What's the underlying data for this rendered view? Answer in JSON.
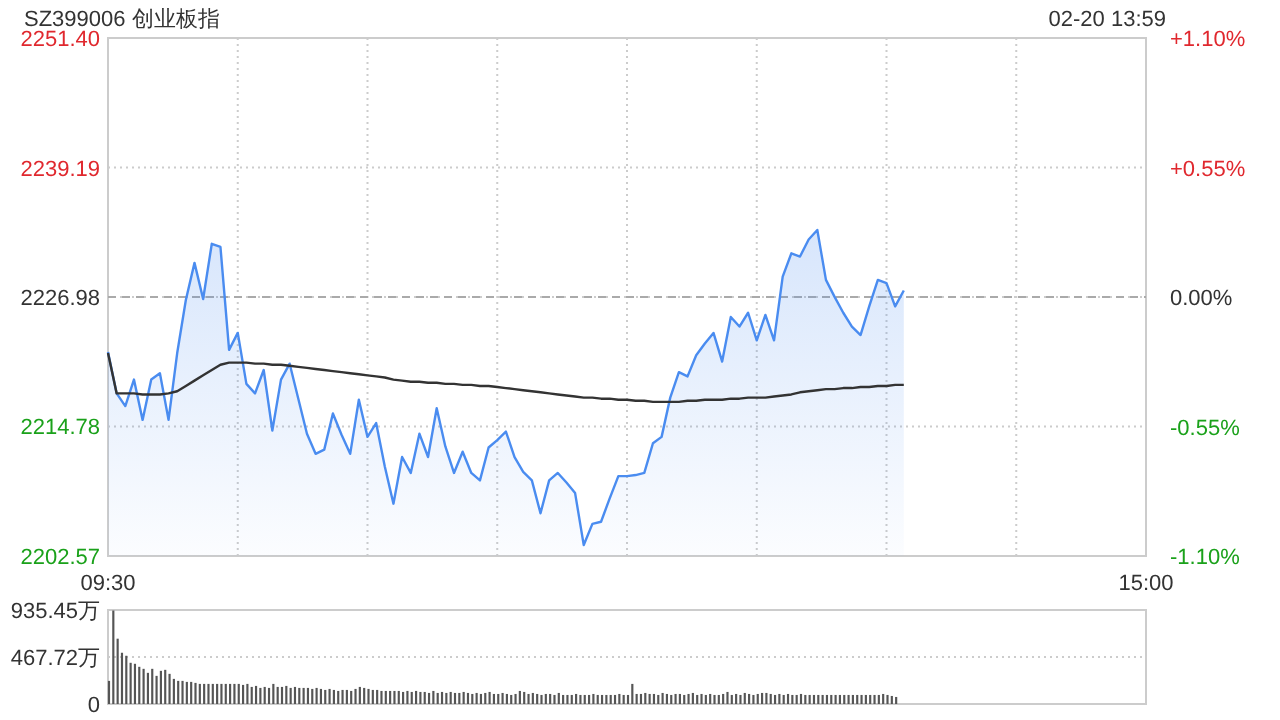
{
  "chart_data": [
    {
      "type": "area",
      "title": "SZ399006 创业板指",
      "subtitle": "02-20 13:59",
      "grid": true,
      "categories": [
        "09:30",
        null,
        null,
        null,
        null,
        null,
        null,
        null,
        null,
        null,
        null,
        null,
        null,
        null,
        null,
        null,
        null,
        null,
        null,
        null,
        null,
        null,
        null,
        null,
        null,
        null,
        null,
        null,
        null,
        null,
        null,
        null,
        null,
        null,
        null,
        null,
        null,
        null,
        null,
        null,
        null,
        null,
        null,
        null,
        null,
        null,
        null,
        null,
        null,
        null,
        null,
        null,
        null,
        null,
        null,
        null,
        null,
        null,
        null,
        null,
        null,
        null,
        null,
        null,
        null,
        null,
        null,
        null,
        null,
        null,
        null,
        null,
        null,
        null,
        null,
        null,
        null,
        null,
        null,
        null,
        null,
        null,
        null,
        null,
        null,
        null,
        null,
        null,
        null,
        null,
        null,
        null,
        null,
        null,
        null,
        null,
        null,
        null,
        null,
        null,
        null,
        null,
        null,
        null,
        null,
        null,
        null,
        null,
        null,
        null,
        null,
        null,
        null,
        null,
        null,
        null,
        null,
        null,
        null,
        null,
        "15:00"
      ],
      "ylim": [
        2202.57,
        2251.4
      ],
      "yticks": [
        {
          "value": 2202.57,
          "label": "2202.57"
        },
        {
          "value": 2214.78,
          "label": "2214.78"
        },
        {
          "value": 2226.98,
          "label": "2226.98"
        },
        {
          "value": 2239.19,
          "label": "2239.19"
        },
        {
          "value": 2251.4,
          "label": "2251.40"
        }
      ],
      "y2lim": [
        -1.1,
        1.1
      ],
      "y2ticks": [
        {
          "value": -1.1,
          "label": "-1.10%"
        },
        {
          "value": -0.55,
          "label": "-0.55%"
        },
        {
          "value": 0,
          "label": "0.00%"
        },
        {
          "value": 0.55,
          "label": "+0.55%"
        },
        {
          "value": 1.1,
          "label": "+1.10%"
        }
      ],
      "ref_lines": [
        {
          "axis": "y",
          "value": 2226.98,
          "color": "#aaaaaa",
          "line_style": "dashed"
        }
      ],
      "series": [
        {
          "color": "#4a8cf0",
          "values": [
            2221.8,
            2217.9,
            2216.7,
            2219.2,
            2215.4,
            2219.2,
            2219.8,
            2215.4,
            2221.7,
            2226.7,
            2230.2,
            2226.8,
            2232.0,
            2231.7,
            2222.0,
            2223.6,
            2218.8,
            2217.9,
            2220.1,
            2214.4,
            2219.2,
            2220.7,
            2217.4,
            2214.1,
            2212.2,
            2212.6,
            2216.0,
            2214.0,
            2212.2,
            2217.3,
            2213.8,
            2215.1,
            2211.0,
            2207.5,
            2211.9,
            2210.4,
            2214.1,
            2211.9,
            2216.5,
            2212.9,
            2210.4,
            2212.4,
            2210.4,
            2209.7,
            2212.8,
            2213.5,
            2214.3,
            2211.9,
            2210.5,
            2209.7,
            2206.6,
            2209.7,
            2210.4,
            2209.5,
            2208.5,
            2203.6,
            2205.6,
            2205.8,
            2208.0,
            2210.1,
            2210.1,
            2210.2,
            2210.4,
            2213.2,
            2213.8,
            2217.5,
            2219.9,
            2219.5,
            2221.5,
            2222.6,
            2223.6,
            2220.9,
            2225.1,
            2224.2,
            2225.5,
            2222.9,
            2225.3,
            2222.9,
            2228.9,
            2231.1,
            2230.8,
            2232.4,
            2233.3,
            2228.6,
            2227.0,
            2225.5,
            2224.2,
            2223.4,
            2226.1,
            2228.6,
            2228.3,
            2226.1,
            2227.6,
            null,
            null,
            null,
            null,
            null,
            null,
            null,
            null,
            null,
            null,
            null,
            null,
            null,
            null,
            null,
            null,
            null,
            null,
            null,
            null,
            null,
            null,
            null,
            null,
            null,
            null,
            null,
            null
          ]
        },
        {
          "type": "line",
          "color": "#333333",
          "values": [
            2221.7,
            2217.9,
            2217.9,
            2217.9,
            2217.8,
            2217.8,
            2217.8,
            2217.9,
            2218.1,
            2218.6,
            2219.1,
            2219.6,
            2220.1,
            2220.6,
            2220.8,
            2220.8,
            2220.8,
            2220.7,
            2220.7,
            2220.6,
            2220.6,
            2220.5,
            2220.4,
            2220.3,
            2220.2,
            2220.1,
            2220.0,
            2219.9,
            2219.8,
            2219.7,
            2219.6,
            2219.5,
            2219.4,
            2219.2,
            2219.1,
            2219.0,
            2219.0,
            2218.9,
            2218.9,
            2218.8,
            2218.8,
            2218.7,
            2218.7,
            2218.6,
            2218.6,
            2218.5,
            2218.4,
            2218.3,
            2218.2,
            2218.1,
            2218.0,
            2217.9,
            2217.8,
            2217.7,
            2217.6,
            2217.5,
            2217.5,
            2217.4,
            2217.4,
            2217.3,
            2217.3,
            2217.2,
            2217.2,
            2217.1,
            2217.1,
            2217.1,
            2217.1,
            2217.2,
            2217.2,
            2217.3,
            2217.3,
            2217.3,
            2217.4,
            2217.4,
            2217.5,
            2217.5,
            2217.5,
            2217.6,
            2217.7,
            2217.8,
            2218.0,
            2218.1,
            2218.2,
            2218.3,
            2218.3,
            2218.4,
            2218.4,
            2218.5,
            2218.5,
            2218.6,
            2218.6,
            2218.7,
            2218.7,
            null,
            null,
            null,
            null,
            null,
            null,
            null,
            null,
            null,
            null,
            null,
            null,
            null,
            null,
            null,
            null,
            null,
            null,
            null,
            null,
            null,
            null,
            null,
            null,
            null,
            null,
            null,
            null
          ]
        }
      ]
    },
    {
      "type": "bar",
      "color": "#555555",
      "grid": "y",
      "tick_labels": "y",
      "ylim": [
        0,
        935.45
      ],
      "yticks": [
        0,
        {
          "value": 467.72,
          "label": "467.72万"
        },
        {
          "value": 935.45,
          "label": "935.45万"
        }
      ],
      "categories": [
        null,
        null,
        null,
        null,
        null,
        null,
        null,
        null,
        null,
        null,
        null,
        null,
        null,
        null,
        null,
        null,
        null,
        null,
        null,
        null,
        null,
        null,
        null,
        null,
        null,
        null,
        null,
        null,
        null,
        null,
        null,
        null,
        null,
        null,
        null,
        null,
        null,
        null,
        null,
        null,
        null,
        null,
        null,
        null,
        null,
        null,
        null,
        null,
        null,
        null,
        null,
        null,
        null,
        null,
        null,
        null,
        null,
        null,
        null,
        null,
        null,
        null,
        null,
        null,
        null,
        null,
        null,
        null,
        null,
        null,
        null,
        null,
        null,
        null,
        null,
        null,
        null,
        null,
        null,
        null,
        null,
        null,
        null,
        null,
        null,
        null,
        null,
        null,
        null,
        null,
        null,
        null,
        null,
        null,
        null,
        null,
        null,
        null,
        null,
        null,
        null,
        null,
        null,
        null,
        null,
        null,
        null,
        null,
        null,
        null,
        null,
        null,
        null,
        null,
        null,
        null,
        null,
        null,
        null,
        null,
        null,
        null,
        null,
        null,
        null,
        null,
        null,
        null,
        null,
        null,
        null,
        null,
        null,
        null,
        null,
        null,
        null,
        null,
        null,
        null,
        null,
        null,
        null,
        null,
        null,
        null,
        null,
        null,
        null,
        null,
        null,
        null,
        null,
        null,
        null,
        null,
        null,
        null,
        null,
        null,
        null,
        null,
        null,
        null,
        null,
        null,
        null,
        null,
        null,
        null,
        null,
        null,
        null,
        null,
        null,
        null,
        null,
        null,
        null,
        null,
        null,
        null,
        null,
        null,
        null,
        null,
        null,
        null,
        null,
        null,
        null,
        null,
        null,
        null,
        null,
        null,
        null,
        null,
        null,
        null,
        null,
        null,
        null,
        null,
        null,
        null,
        null,
        null,
        null,
        null,
        null,
        null,
        null,
        null,
        null,
        null,
        null,
        null,
        null,
        null,
        null,
        null,
        null,
        null,
        null,
        null,
        null,
        null,
        null,
        null,
        null,
        null,
        null,
        null,
        null,
        null,
        null,
        null,
        null,
        null,
        null
      ],
      "values": [
        230,
        930,
        650,
        510,
        480,
        410,
        400,
        370,
        350,
        310,
        350,
        280,
        330,
        340,
        300,
        250,
        230,
        230,
        220,
        220,
        210,
        200,
        200,
        200,
        200,
        200,
        200,
        200,
        200,
        200,
        200,
        190,
        200,
        170,
        180,
        160,
        170,
        160,
        200,
        170,
        170,
        180,
        160,
        170,
        160,
        160,
        160,
        150,
        160,
        150,
        140,
        150,
        140,
        130,
        140,
        140,
        130,
        150,
        170,
        160,
        150,
        140,
        140,
        130,
        130,
        130,
        130,
        130,
        120,
        130,
        120,
        130,
        120,
        120,
        110,
        130,
        110,
        120,
        110,
        120,
        110,
        110,
        120,
        110,
        100,
        110,
        100,
        110,
        120,
        100,
        100,
        110,
        100,
        90,
        100,
        130,
        120,
        100,
        110,
        100,
        90,
        100,
        100,
        90,
        110,
        90,
        90,
        90,
        100,
        90,
        90,
        90,
        100,
        90,
        90,
        90,
        90,
        90,
        100,
        90,
        90,
        200,
        100,
        100,
        110,
        100,
        100,
        90,
        110,
        100,
        90,
        100,
        100,
        90,
        100,
        110,
        90,
        100,
        90,
        100,
        90,
        90,
        100,
        120,
        90,
        100,
        90,
        110,
        100,
        90,
        100,
        110,
        110,
        100,
        90,
        100,
        90,
        100,
        90,
        90,
        100,
        90,
        90,
        90,
        90,
        90,
        90,
        90,
        90,
        90,
        90,
        90,
        90,
        90,
        90,
        90,
        90,
        90,
        90,
        100,
        90,
        80,
        70,
        null,
        null,
        null,
        null,
        null,
        null,
        null,
        null,
        null,
        null,
        null,
        null,
        null,
        null,
        null,
        null,
        null,
        null,
        null,
        null,
        null,
        null,
        null,
        null,
        null,
        null,
        null,
        null,
        null,
        null,
        null,
        null,
        null,
        null,
        null,
        null,
        null,
        null,
        null,
        null,
        null,
        null,
        null,
        null,
        null,
        null,
        null,
        null,
        null,
        null,
        null,
        null,
        null,
        null,
        null,
        null,
        null,
        null
      ]
    }
  ]
}
